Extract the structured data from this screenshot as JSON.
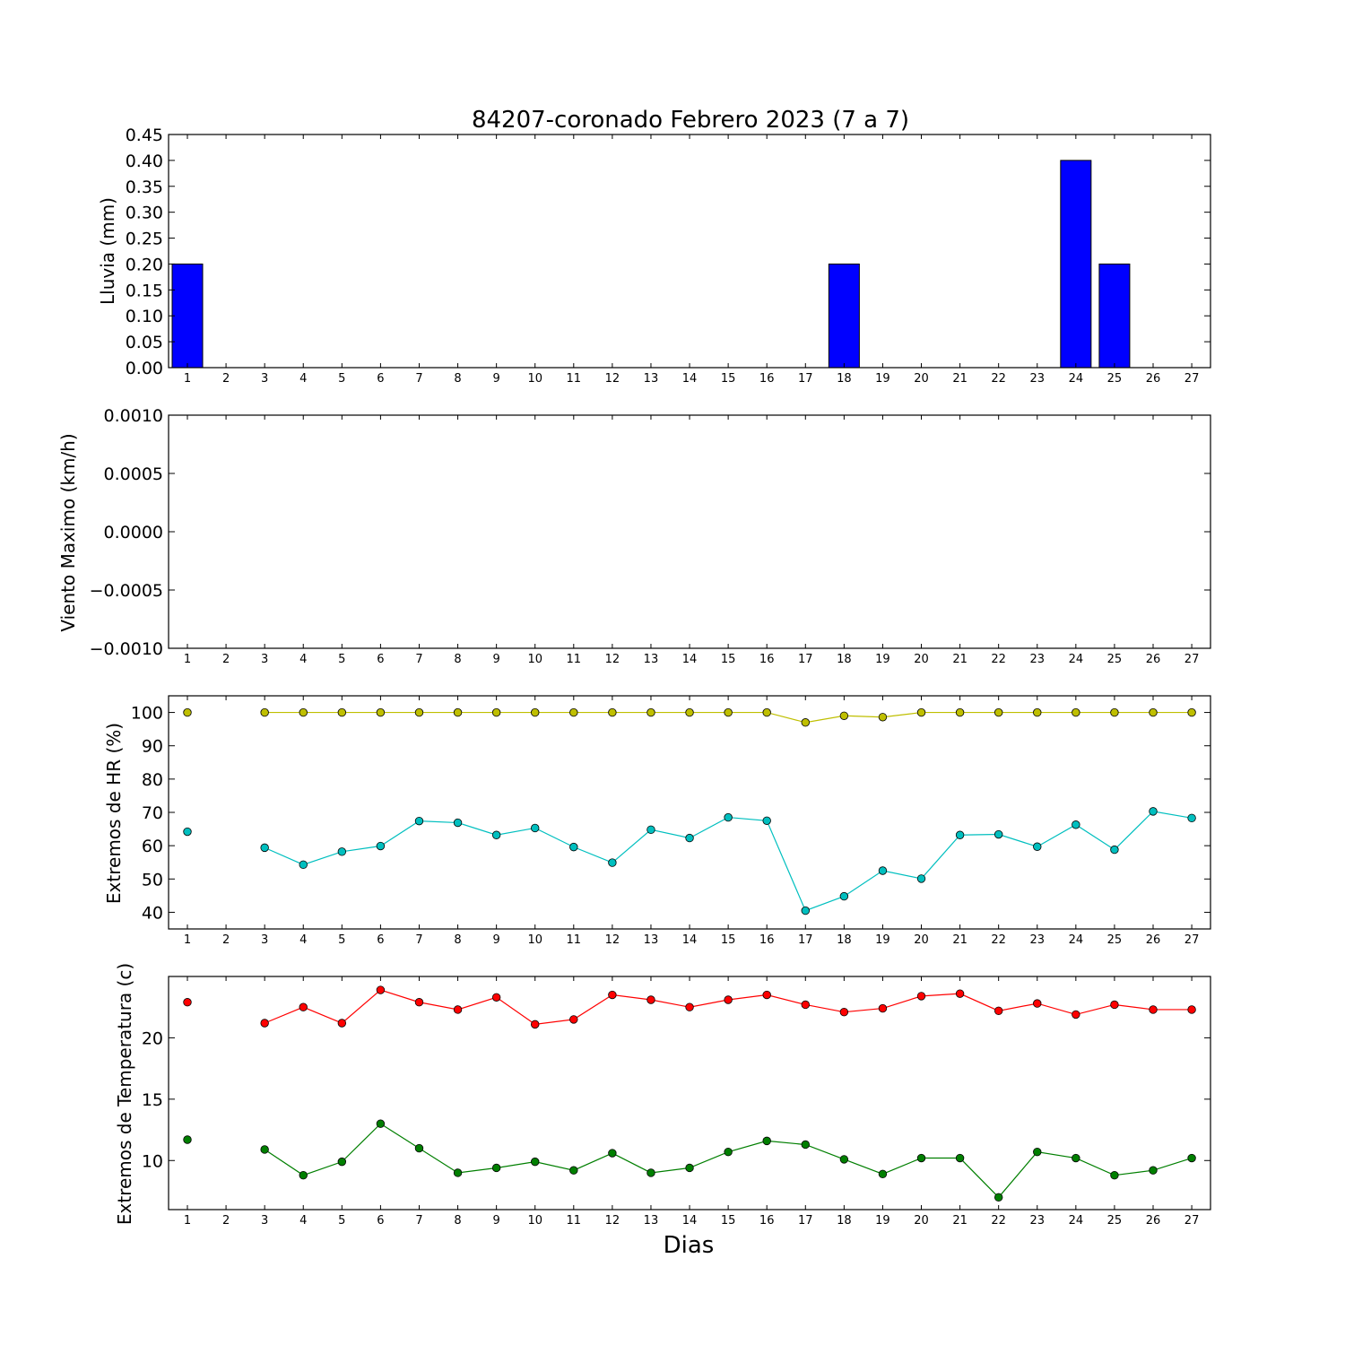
{
  "chart_data": [
    {
      "type": "bar",
      "title": "84207-coronado Febrero 2023  (7 a 7)",
      "ylabel": "Lluvia (mm)",
      "xlabel": "",
      "x": [
        1,
        2,
        3,
        4,
        5,
        6,
        7,
        8,
        9,
        10,
        11,
        12,
        13,
        14,
        15,
        16,
        17,
        18,
        19,
        20,
        21,
        22,
        23,
        24,
        25,
        26,
        27
      ],
      "values": [
        0.2,
        0,
        0,
        0,
        0,
        0,
        0,
        0,
        0,
        0,
        0,
        0,
        0,
        0,
        0,
        0,
        0,
        0.2,
        0,
        0,
        0,
        0,
        0,
        0.4,
        0.2,
        0,
        0
      ],
      "ylim": [
        0,
        0.45
      ],
      "yticks": [
        "0.00",
        "0.05",
        "0.10",
        "0.15",
        "0.20",
        "0.25",
        "0.30",
        "0.35",
        "0.40",
        "0.45"
      ],
      "color": "#0000ff"
    },
    {
      "type": "line",
      "ylabel": "Viento Maximo (km/h)",
      "x": [
        1,
        2,
        3,
        4,
        5,
        6,
        7,
        8,
        9,
        10,
        11,
        12,
        13,
        14,
        15,
        16,
        17,
        18,
        19,
        20,
        21,
        22,
        23,
        24,
        25,
        26,
        27
      ],
      "series": [],
      "ylim": [
        -0.001,
        0.001
      ],
      "yticks": [
        "−0.0010",
        "−0.0005",
        "0.0000",
        "0.0005",
        "0.0010"
      ]
    },
    {
      "type": "line",
      "ylabel": "Extremos de HR (%)",
      "x": [
        1,
        2,
        3,
        4,
        5,
        6,
        7,
        8,
        9,
        10,
        11,
        12,
        13,
        14,
        15,
        16,
        17,
        18,
        19,
        20,
        21,
        22,
        23,
        24,
        25,
        26,
        27
      ],
      "series": [
        {
          "color": "#bfbf00",
          "values": [
            100,
            null,
            100,
            100,
            100,
            100,
            100,
            100,
            100,
            100,
            100,
            100,
            100,
            100,
            100,
            100,
            97,
            99,
            98.6,
            100,
            100,
            100,
            100,
            100,
            100,
            100,
            100
          ]
        },
        {
          "color": "#00bfbf",
          "values": [
            64.2,
            null,
            59.4,
            54.3,
            58.2,
            59.9,
            67.4,
            66.9,
            63.2,
            65.3,
            59.6,
            54.9,
            64.8,
            62.3,
            68.5,
            67.5,
            40.5,
            44.8,
            52.5,
            50.1,
            63.2,
            63.4,
            59.7,
            66.3,
            58.8,
            70.3,
            68.3
          ]
        }
      ],
      "ylim": [
        35,
        105
      ],
      "yticks": [
        "40",
        "50",
        "60",
        "70",
        "80",
        "90",
        "100"
      ]
    },
    {
      "type": "line",
      "ylabel": "Extremos de Temperatura (c)",
      "xlabel": "Dias",
      "x": [
        1,
        2,
        3,
        4,
        5,
        6,
        7,
        8,
        9,
        10,
        11,
        12,
        13,
        14,
        15,
        16,
        17,
        18,
        19,
        20,
        21,
        22,
        23,
        24,
        25,
        26,
        27
      ],
      "series": [
        {
          "color": "#ff0000",
          "values": [
            22.9,
            null,
            21.2,
            22.5,
            21.2,
            23.9,
            22.9,
            22.3,
            23.3,
            21.1,
            21.5,
            23.5,
            23.1,
            22.5,
            23.1,
            23.5,
            22.7,
            22.1,
            22.4,
            23.4,
            23.6,
            22.2,
            22.8,
            21.9,
            22.7,
            22.3,
            22.3
          ]
        },
        {
          "color": "#007f00",
          "values": [
            11.7,
            null,
            10.9,
            8.8,
            9.9,
            13.0,
            11.0,
            9.0,
            9.4,
            9.9,
            9.2,
            10.6,
            9.0,
            9.4,
            10.7,
            11.6,
            11.3,
            10.1,
            8.9,
            10.2,
            10.2,
            7.0,
            10.7,
            10.2,
            8.8,
            9.2,
            10.2
          ]
        }
      ],
      "ylim": [
        6,
        25
      ],
      "yticks": [
        "10",
        "15",
        "20"
      ]
    }
  ]
}
